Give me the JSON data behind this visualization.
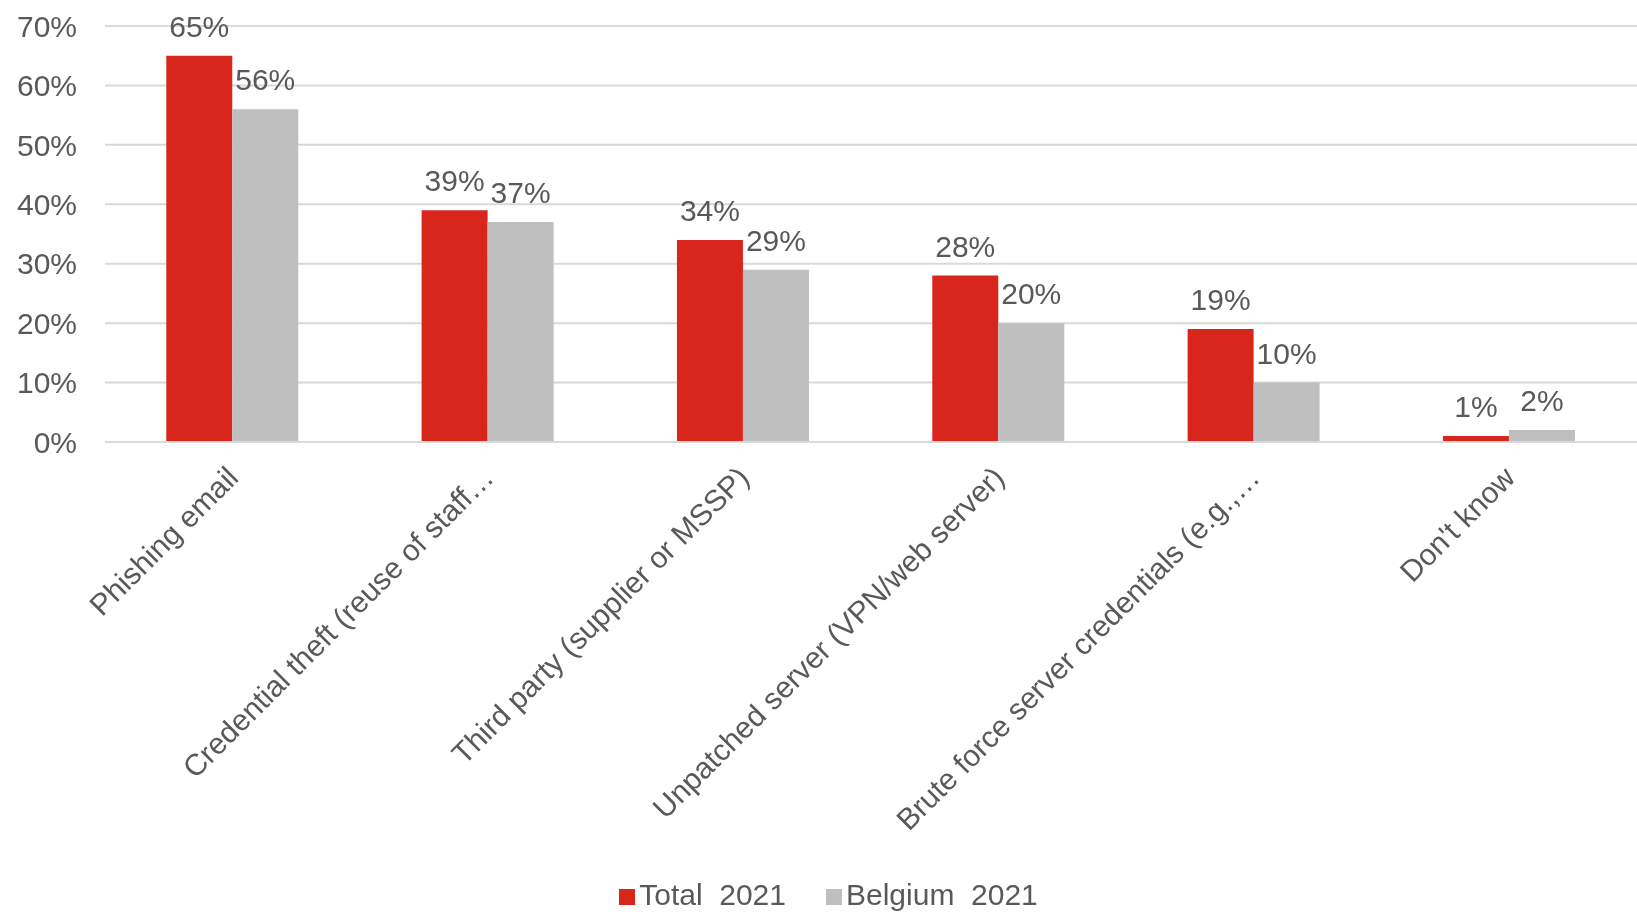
{
  "chart_data": {
    "type": "bar",
    "categories": [
      "Phishing email",
      "Credential theft (reuse of staff…",
      "Third party (supplier or MSSP)",
      "Unpatched server (VPN/web server)",
      "Brute force server credentials (e.g.,…",
      "Don't know"
    ],
    "series": [
      {
        "name": "Total  2021",
        "color": "#d9261c",
        "values": [
          65,
          39,
          34,
          28,
          19,
          1
        ],
        "value_labels": [
          "65%",
          "39%",
          "34%",
          "28%",
          "19%",
          "1%"
        ]
      },
      {
        "name": "Belgium  2021",
        "color": "#bfbfbf",
        "values": [
          56,
          37,
          29,
          20,
          10,
          2
        ],
        "value_labels": [
          "56%",
          "37%",
          "29%",
          "20%",
          "10%",
          "2%"
        ]
      }
    ],
    "ylim": [
      0,
      70
    ],
    "yticks": [
      {
        "value": 0,
        "label": "0%"
      },
      {
        "value": 10,
        "label": "10%"
      },
      {
        "value": 20,
        "label": "20%"
      },
      {
        "value": 30,
        "label": "30%"
      },
      {
        "value": 40,
        "label": "40%"
      },
      {
        "value": 50,
        "label": "50%"
      },
      {
        "value": 60,
        "label": "60%"
      },
      {
        "value": 70,
        "label": "70%"
      }
    ],
    "grid": "y",
    "legend": "bottom"
  }
}
